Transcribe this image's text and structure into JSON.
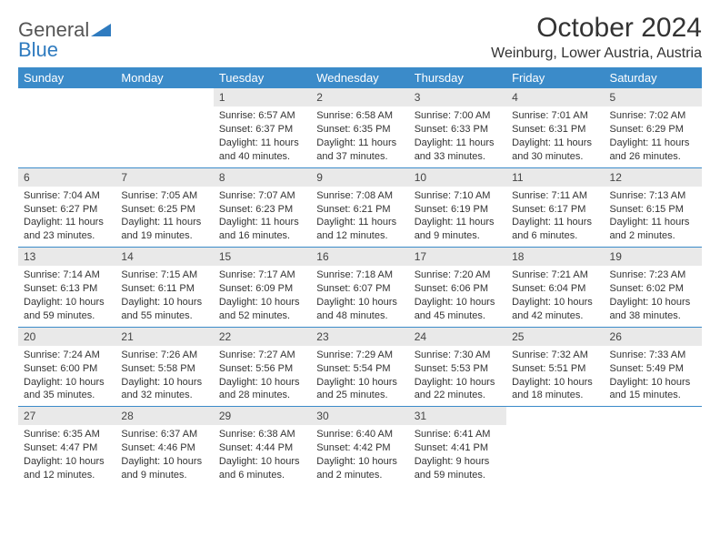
{
  "brand": {
    "part1": "General",
    "part2": "Blue"
  },
  "title": "October 2024",
  "location": "Weinburg, Lower Austria, Austria",
  "colors": {
    "header_bg": "#3b8bc9",
    "header_text": "#ffffff",
    "daynum_bg": "#e9e9e9",
    "border": "#3b8bc9",
    "brand_blue": "#2f7bbf",
    "text": "#333333"
  },
  "font": {
    "title_size": 30,
    "location_size": 16,
    "header_size": 13,
    "body_size": 11
  },
  "weekdays": [
    "Sunday",
    "Monday",
    "Tuesday",
    "Wednesday",
    "Thursday",
    "Friday",
    "Saturday"
  ],
  "weeks": [
    [
      null,
      null,
      {
        "n": "1",
        "sr": "Sunrise: 6:57 AM",
        "ss": "Sunset: 6:37 PM",
        "dl": "Daylight: 11 hours and 40 minutes."
      },
      {
        "n": "2",
        "sr": "Sunrise: 6:58 AM",
        "ss": "Sunset: 6:35 PM",
        "dl": "Daylight: 11 hours and 37 minutes."
      },
      {
        "n": "3",
        "sr": "Sunrise: 7:00 AM",
        "ss": "Sunset: 6:33 PM",
        "dl": "Daylight: 11 hours and 33 minutes."
      },
      {
        "n": "4",
        "sr": "Sunrise: 7:01 AM",
        "ss": "Sunset: 6:31 PM",
        "dl": "Daylight: 11 hours and 30 minutes."
      },
      {
        "n": "5",
        "sr": "Sunrise: 7:02 AM",
        "ss": "Sunset: 6:29 PM",
        "dl": "Daylight: 11 hours and 26 minutes."
      }
    ],
    [
      {
        "n": "6",
        "sr": "Sunrise: 7:04 AM",
        "ss": "Sunset: 6:27 PM",
        "dl": "Daylight: 11 hours and 23 minutes."
      },
      {
        "n": "7",
        "sr": "Sunrise: 7:05 AM",
        "ss": "Sunset: 6:25 PM",
        "dl": "Daylight: 11 hours and 19 minutes."
      },
      {
        "n": "8",
        "sr": "Sunrise: 7:07 AM",
        "ss": "Sunset: 6:23 PM",
        "dl": "Daylight: 11 hours and 16 minutes."
      },
      {
        "n": "9",
        "sr": "Sunrise: 7:08 AM",
        "ss": "Sunset: 6:21 PM",
        "dl": "Daylight: 11 hours and 12 minutes."
      },
      {
        "n": "10",
        "sr": "Sunrise: 7:10 AM",
        "ss": "Sunset: 6:19 PM",
        "dl": "Daylight: 11 hours and 9 minutes."
      },
      {
        "n": "11",
        "sr": "Sunrise: 7:11 AM",
        "ss": "Sunset: 6:17 PM",
        "dl": "Daylight: 11 hours and 6 minutes."
      },
      {
        "n": "12",
        "sr": "Sunrise: 7:13 AM",
        "ss": "Sunset: 6:15 PM",
        "dl": "Daylight: 11 hours and 2 minutes."
      }
    ],
    [
      {
        "n": "13",
        "sr": "Sunrise: 7:14 AM",
        "ss": "Sunset: 6:13 PM",
        "dl": "Daylight: 10 hours and 59 minutes."
      },
      {
        "n": "14",
        "sr": "Sunrise: 7:15 AM",
        "ss": "Sunset: 6:11 PM",
        "dl": "Daylight: 10 hours and 55 minutes."
      },
      {
        "n": "15",
        "sr": "Sunrise: 7:17 AM",
        "ss": "Sunset: 6:09 PM",
        "dl": "Daylight: 10 hours and 52 minutes."
      },
      {
        "n": "16",
        "sr": "Sunrise: 7:18 AM",
        "ss": "Sunset: 6:07 PM",
        "dl": "Daylight: 10 hours and 48 minutes."
      },
      {
        "n": "17",
        "sr": "Sunrise: 7:20 AM",
        "ss": "Sunset: 6:06 PM",
        "dl": "Daylight: 10 hours and 45 minutes."
      },
      {
        "n": "18",
        "sr": "Sunrise: 7:21 AM",
        "ss": "Sunset: 6:04 PM",
        "dl": "Daylight: 10 hours and 42 minutes."
      },
      {
        "n": "19",
        "sr": "Sunrise: 7:23 AM",
        "ss": "Sunset: 6:02 PM",
        "dl": "Daylight: 10 hours and 38 minutes."
      }
    ],
    [
      {
        "n": "20",
        "sr": "Sunrise: 7:24 AM",
        "ss": "Sunset: 6:00 PM",
        "dl": "Daylight: 10 hours and 35 minutes."
      },
      {
        "n": "21",
        "sr": "Sunrise: 7:26 AM",
        "ss": "Sunset: 5:58 PM",
        "dl": "Daylight: 10 hours and 32 minutes."
      },
      {
        "n": "22",
        "sr": "Sunrise: 7:27 AM",
        "ss": "Sunset: 5:56 PM",
        "dl": "Daylight: 10 hours and 28 minutes."
      },
      {
        "n": "23",
        "sr": "Sunrise: 7:29 AM",
        "ss": "Sunset: 5:54 PM",
        "dl": "Daylight: 10 hours and 25 minutes."
      },
      {
        "n": "24",
        "sr": "Sunrise: 7:30 AM",
        "ss": "Sunset: 5:53 PM",
        "dl": "Daylight: 10 hours and 22 minutes."
      },
      {
        "n": "25",
        "sr": "Sunrise: 7:32 AM",
        "ss": "Sunset: 5:51 PM",
        "dl": "Daylight: 10 hours and 18 minutes."
      },
      {
        "n": "26",
        "sr": "Sunrise: 7:33 AM",
        "ss": "Sunset: 5:49 PM",
        "dl": "Daylight: 10 hours and 15 minutes."
      }
    ],
    [
      {
        "n": "27",
        "sr": "Sunrise: 6:35 AM",
        "ss": "Sunset: 4:47 PM",
        "dl": "Daylight: 10 hours and 12 minutes."
      },
      {
        "n": "28",
        "sr": "Sunrise: 6:37 AM",
        "ss": "Sunset: 4:46 PM",
        "dl": "Daylight: 10 hours and 9 minutes."
      },
      {
        "n": "29",
        "sr": "Sunrise: 6:38 AM",
        "ss": "Sunset: 4:44 PM",
        "dl": "Daylight: 10 hours and 6 minutes."
      },
      {
        "n": "30",
        "sr": "Sunrise: 6:40 AM",
        "ss": "Sunset: 4:42 PM",
        "dl": "Daylight: 10 hours and 2 minutes."
      },
      {
        "n": "31",
        "sr": "Sunrise: 6:41 AM",
        "ss": "Sunset: 4:41 PM",
        "dl": "Daylight: 9 hours and 59 minutes."
      },
      null,
      null
    ]
  ]
}
